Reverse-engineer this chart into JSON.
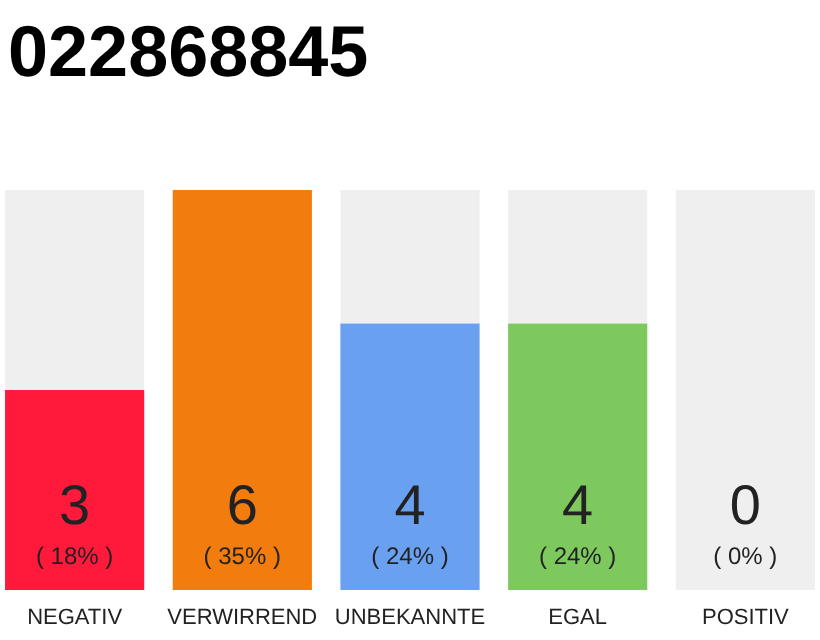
{
  "chart_data": {
    "type": "bar",
    "title": "022868845",
    "categories": [
      "NEGATIV",
      "VERWIRREND",
      "UNBEKANNTE",
      "EGAL",
      "POSITIV"
    ],
    "stacked": true,
    "ylim": [
      0,
      6
    ],
    "series": [
      {
        "colors": [
          "#ff1a3c",
          "#f27c0e",
          "#6aa0f0",
          "#7dc95e",
          "#cccccc"
        ],
        "values": [
          3,
          6,
          4,
          4,
          0
        ],
        "value_labels": [
          "3",
          "6",
          "4",
          "4",
          null
        ]
      },
      {
        "color": "#efefef",
        "values": [
          3,
          0,
          2,
          2,
          6
        ]
      }
    ],
    "annotations": [
      {
        "text": "( 18% )",
        "x": "NEGATIV",
        "y": 0
      },
      {
        "text": "( 35% )",
        "x": "VERWIRREND",
        "y": 0
      },
      {
        "text": "( 24% )",
        "x": "UNBEKANNTE",
        "y": 0
      },
      {
        "text": "( 24% )",
        "x": "EGAL",
        "y": 0
      },
      {
        "text": "( 0% )",
        "x": "POSITIV",
        "y": 0
      },
      {
        "text": "0",
        "x": "POSITIV",
        "y": 0
      }
    ]
  }
}
